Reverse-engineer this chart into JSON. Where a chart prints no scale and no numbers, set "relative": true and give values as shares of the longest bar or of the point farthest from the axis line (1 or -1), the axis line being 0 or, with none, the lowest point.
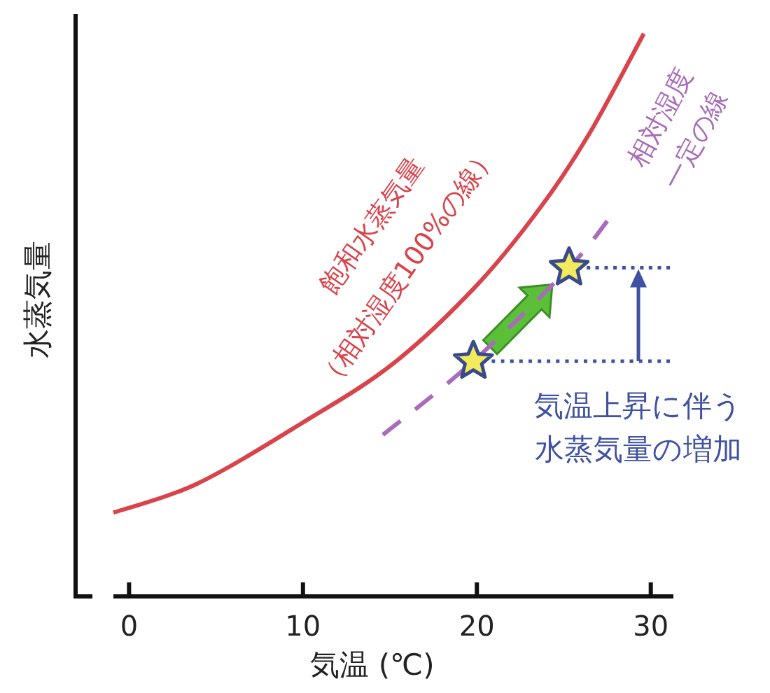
{
  "chart_data": {
    "type": "line",
    "relative": true,
    "xlabel": "気温 (℃)",
    "ylabel": "水蒸気量",
    "xlim": [
      -0.9,
      31.3
    ],
    "xticks": [
      0,
      10,
      20,
      30
    ],
    "grid": false,
    "tick_labels": "x",
    "series": [
      {
        "color": "#d9434b",
        "line_style": "solid",
        "x": [
          -0.9,
          3.9,
          10.0,
          15.2,
          20.0,
          23.7,
          26.5,
          29.6
        ],
        "values": [
          0.149,
          0.2,
          0.309,
          0.414,
          0.553,
          0.693,
          0.824,
          1.0
        ]
      },
      {
        "color": "#a86cb8",
        "line_style": "dashed",
        "x": [
          14.6,
          19.8,
          25.3,
          27.5
        ],
        "values": [
          0.287,
          0.418,
          0.584,
          0.667
        ]
      },
      {
        "color": "#3f51a0",
        "line_style": "dotted",
        "x": [
          19.8,
          31.1
        ],
        "values": [
          0.418,
          0.418
        ]
      },
      {
        "color": "#3f51a0",
        "line_style": "dotted",
        "x": [
          25.3,
          31.1
        ],
        "values": [
          0.584,
          0.584
        ]
      },
      {
        "type": "scatter",
        "color": "#f2ec5c",
        "marker": "star",
        "x": [
          19.8,
          25.3
        ],
        "values": [
          0.418,
          0.584
        ]
      }
    ],
    "annotations": [
      "飽和水蒸気量",
      "（相対湿度100%の線）",
      "相対湿度",
      "一定の線",
      "気温上昇に伴う",
      "水蒸気量の増加"
    ]
  }
}
